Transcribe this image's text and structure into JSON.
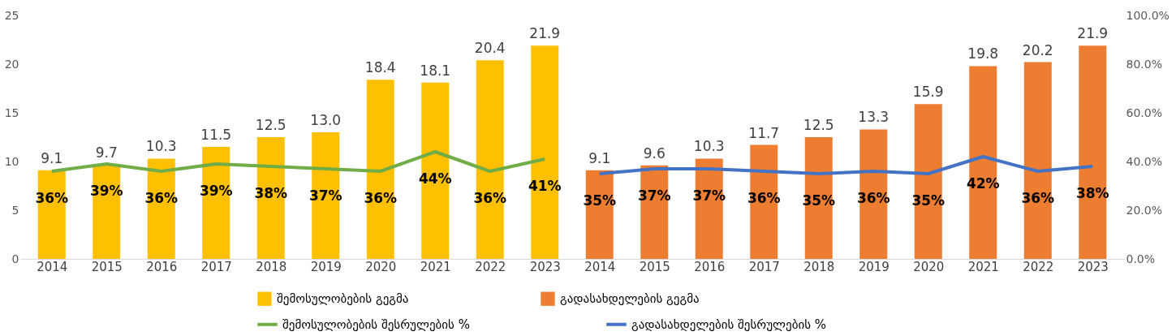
{
  "chart_data": {
    "type": "bar",
    "categories": [
      "2014",
      "2015",
      "2016",
      "2017",
      "2018",
      "2019",
      "2020",
      "2021",
      "2022",
      "2023",
      "2014",
      "2015",
      "2016",
      "2017",
      "2018",
      "2019",
      "2020",
      "2021",
      "2022",
      "2023"
    ],
    "series": [
      {
        "name": "შემოსულობების გეგმა",
        "color": "#ffc000",
        "values": [
          9.1,
          9.7,
          10.3,
          11.5,
          12.5,
          13.0,
          18.4,
          18.1,
          20.4,
          21.9,
          null,
          null,
          null,
          null,
          null,
          null,
          null,
          null,
          null,
          null
        ],
        "value_labels": [
          "9.1",
          "9.7",
          "10.3",
          "11.5",
          "12.5",
          "13.0",
          "18.4",
          "18.1",
          "20.4",
          "21.9",
          null,
          null,
          null,
          null,
          null,
          null,
          null,
          null,
          null,
          null
        ]
      },
      {
        "name": "გადასახდელების გეგმა",
        "color": "#ed7d31",
        "values": [
          null,
          null,
          null,
          null,
          null,
          null,
          null,
          null,
          null,
          null,
          9.1,
          9.6,
          10.3,
          11.7,
          12.5,
          13.3,
          15.9,
          19.8,
          20.2,
          21.9
        ],
        "value_labels": [
          null,
          null,
          null,
          null,
          null,
          null,
          null,
          null,
          null,
          null,
          "9.1",
          "9.6",
          "10.3",
          "11.7",
          "12.5",
          "13.3",
          "15.9",
          "19.8",
          "20.2",
          "21.9"
        ]
      },
      {
        "name": "შემოსულობების შესრულების %",
        "type": "line",
        "axis": "y2",
        "color": "#70ad47",
        "values": [
          36,
          39,
          36,
          39,
          38,
          37,
          36,
          44,
          36,
          41,
          null,
          null,
          null,
          null,
          null,
          null,
          null,
          null,
          null,
          null
        ],
        "value_labels": [
          "36%",
          "39%",
          "36%",
          "39%",
          "38%",
          "37%",
          "36%",
          "44%",
          "36%",
          "41%",
          null,
          null,
          null,
          null,
          null,
          null,
          null,
          null,
          null,
          null
        ]
      },
      {
        "name": "გადასახდელების შესრულების %",
        "type": "line",
        "axis": "y2",
        "color": "#4472c4",
        "values": [
          null,
          null,
          null,
          null,
          null,
          null,
          null,
          null,
          null,
          null,
          35,
          37,
          37,
          36,
          35,
          36,
          35,
          42,
          36,
          38
        ],
        "value_labels": [
          null,
          null,
          null,
          null,
          null,
          null,
          null,
          null,
          null,
          null,
          "35%",
          "37%",
          "37%",
          "36%",
          "35%",
          "36%",
          "35%",
          "42%",
          "36%",
          "38%"
        ]
      }
    ],
    "ylim": [
      0,
      25
    ],
    "yticks": [
      0,
      5,
      10,
      15,
      20,
      25
    ],
    "y2lim": [
      0,
      100
    ],
    "y2ticks": [
      {
        "value": 0,
        "label": "0.0%"
      },
      {
        "value": 20,
        "label": "20.0%"
      },
      {
        "value": 40,
        "label": "40.0%"
      },
      {
        "value": 60,
        "label": "60.0%"
      },
      {
        "value": 80,
        "label": "80.0%"
      },
      {
        "value": 100,
        "label": "100.0%"
      }
    ],
    "grid": false,
    "legend": "bottom"
  }
}
